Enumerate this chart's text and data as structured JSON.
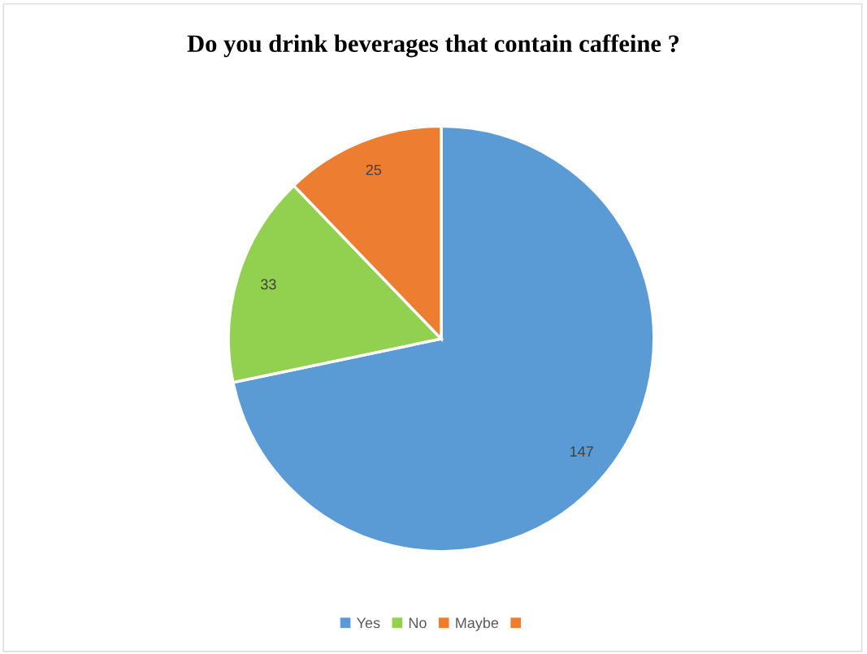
{
  "chart_data": {
    "type": "pie",
    "title": "Do you drink beverages that contain caffeine ?",
    "categories": [
      "Yes",
      "No",
      "Maybe",
      null
    ],
    "values": [
      147,
      33,
      25,
      null
    ],
    "colors": [
      "#5b9bd5",
      "#92d050",
      "#ed7d31",
      "#ed7d31"
    ],
    "data_labels": true,
    "legend": "bottom"
  }
}
